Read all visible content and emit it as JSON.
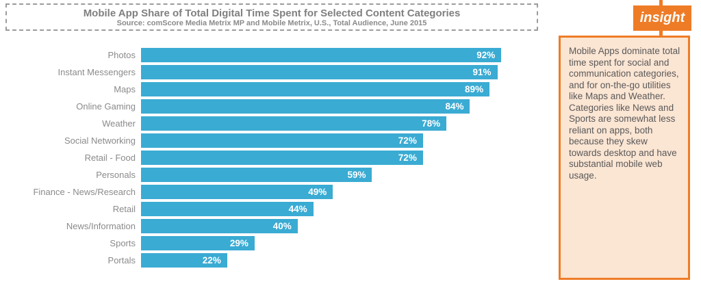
{
  "title_box": {
    "title": "Mobile App Share of Total Digital Time Spent for Selected Content Categories",
    "subtitle": "Source: comScore Media Metrix MP and Mobile Metrix, U.S., Total Audience, June 2015"
  },
  "chart_data": {
    "type": "bar",
    "orientation": "horizontal",
    "categories": [
      "Photos",
      "Instant Messengers",
      "Maps",
      "Online Gaming",
      "Weather",
      "Social Networking",
      "Retail - Food",
      "Personals",
      "Finance - News/Research",
      "Retail",
      "News/Information",
      "Sports",
      "Portals"
    ],
    "values": [
      92,
      91,
      89,
      84,
      78,
      72,
      72,
      59,
      49,
      44,
      40,
      29,
      22
    ],
    "value_suffix": "%",
    "xlim": [
      0,
      100
    ],
    "grid": false,
    "legend": false,
    "title": "Mobile App Share of Total Digital Time Spent for Selected Content Categories",
    "xlabel": "",
    "ylabel": ""
  },
  "insight": {
    "tag_label": "insight",
    "text_lines": [
      "Mobile Apps dominate total time spent for social and communication categories, and for on-the-go utilities like Maps and Weather.",
      "Categories like News and Sports are somewhat less reliant on apps, both because they skew towards desktop and have substantial mobile web usage."
    ]
  },
  "colors": {
    "bar": "#3aabd3",
    "accent_orange": "#ee7c26",
    "insight_fill": "#fbe5d3",
    "title_text": "#7f7f7f",
    "category_text": "#8a8a8a",
    "insight_text": "#595959",
    "value_text": "#ffffff",
    "dashed_border": "#9b9b9b"
  }
}
